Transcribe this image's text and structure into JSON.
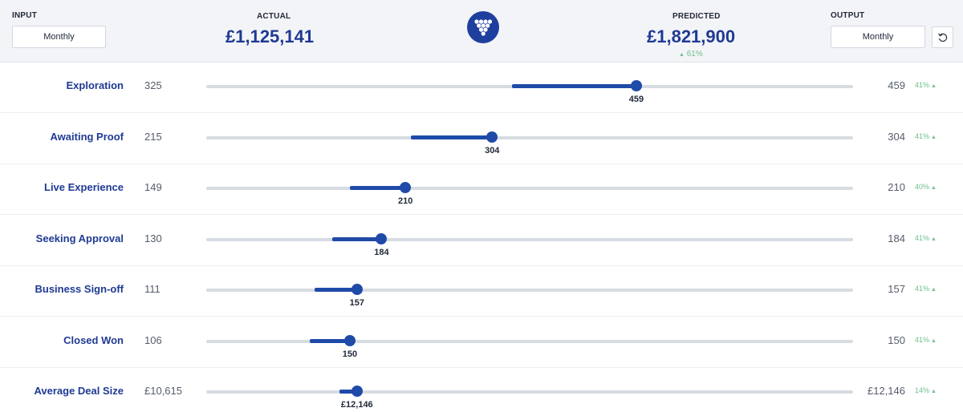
{
  "header": {
    "input_label": "INPUT",
    "input_period": "Monthly",
    "actual_label": "ACTUAL",
    "actual_value": "£1,125,141",
    "predicted_label": "PREDICTED",
    "predicted_value": "£1,821,900",
    "predicted_delta": "61%",
    "output_label": "OUTPUT",
    "output_period": "Monthly",
    "logo_icon": "grape-cluster-icon",
    "reset_icon": "reset-icon"
  },
  "accent_color": "#1f4aa8",
  "positive_color": "#6cc08b",
  "rows": [
    {
      "label": "Exploration",
      "actual": "325",
      "predicted": "459",
      "slider_value": "459",
      "delta": "41%",
      "range_start": 0.473,
      "range_end": 0.665
    },
    {
      "label": "Awaiting Proof",
      "actual": "215",
      "predicted": "304",
      "slider_value": "304",
      "delta": "41%",
      "range_start": 0.316,
      "range_end": 0.442
    },
    {
      "label": "Live Experience",
      "actual": "149",
      "predicted": "210",
      "slider_value": "210",
      "delta": "40%",
      "range_start": 0.222,
      "range_end": 0.308
    },
    {
      "label": "Seeking Approval",
      "actual": "130",
      "predicted": "184",
      "slider_value": "184",
      "delta": "41%",
      "range_start": 0.195,
      "range_end": 0.271
    },
    {
      "label": "Business Sign-off",
      "actual": "111",
      "predicted": "157",
      "slider_value": "157",
      "delta": "41%",
      "range_start": 0.168,
      "range_end": 0.233
    },
    {
      "label": "Closed Won",
      "actual": "106",
      "predicted": "150",
      "slider_value": "150",
      "delta": "41%",
      "range_start": 0.16,
      "range_end": 0.222
    },
    {
      "label": "Average Deal Size",
      "actual": "£10,615",
      "predicted": "£12,146",
      "slider_value": "£12,146",
      "delta": "14%",
      "range_start": 0.206,
      "range_end": 0.233
    }
  ]
}
